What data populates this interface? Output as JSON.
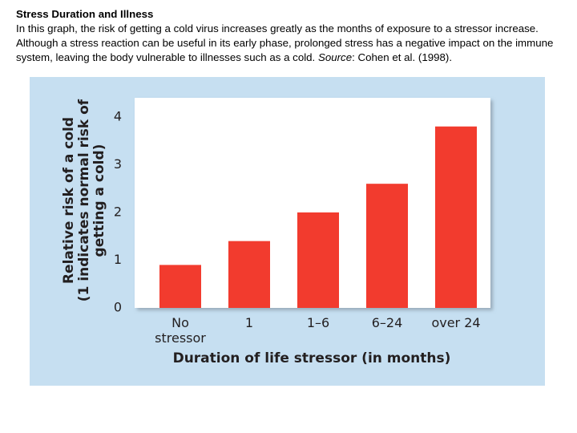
{
  "caption": {
    "title": "Stress Duration and Illness",
    "text": "In this graph, the risk of getting a cold virus increases greatly as the months of exposure to a stressor increase. Although a stress reaction can be useful in its early phase, prolonged stress has a negative impact on the immune system, leaving the body vulnerable to illnesses such as a cold.",
    "source_label": "Source",
    "source_text": ": Cohen et al. (1998)."
  },
  "chart_data": {
    "type": "bar",
    "categories": [
      "No stressor",
      "1",
      "1–6",
      "6–24",
      "over 24"
    ],
    "values": [
      0.9,
      1.4,
      2.0,
      2.6,
      3.8
    ],
    "color": "#f23b2e",
    "ylim": [
      0,
      4.4
    ],
    "yticks": [
      0,
      1,
      2,
      3,
      4
    ],
    "grid": false,
    "ylabel": [
      "Relative risk of a cold",
      "(1 indicates normal risk of",
      "getting a cold)"
    ],
    "xlabel": "Duration of life stressor (in months)"
  }
}
